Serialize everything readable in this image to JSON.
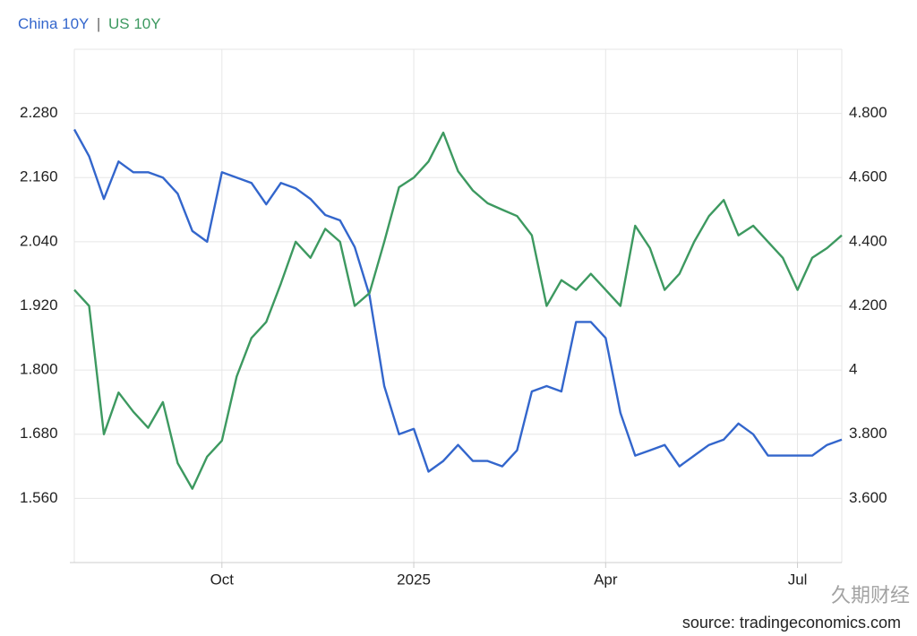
{
  "chart_data": {
    "type": "line",
    "legend_separator": "|",
    "source": "source: tradingeconomics.com",
    "watermark": "久期财经",
    "categories": [
      null,
      null,
      null,
      null,
      null,
      null,
      null,
      null,
      null,
      null,
      "Oct",
      null,
      null,
      null,
      null,
      null,
      null,
      null,
      null,
      null,
      null,
      null,
      null,
      "2025",
      null,
      null,
      null,
      null,
      null,
      null,
      null,
      null,
      null,
      null,
      null,
      null,
      "Apr",
      null,
      null,
      null,
      null,
      null,
      null,
      null,
      null,
      null,
      null,
      null,
      null,
      "Jul",
      null,
      null,
      null
    ],
    "series": [
      {
        "name": "China 10Y",
        "color": "#3366cc",
        "values": [
          2.25,
          2.2,
          2.12,
          2.19,
          2.17,
          2.17,
          2.16,
          2.13,
          2.06,
          2.04,
          2.17,
          2.16,
          2.15,
          2.11,
          2.15,
          2.14,
          2.12,
          2.09,
          2.08,
          2.03,
          1.94,
          1.77,
          1.68,
          1.69,
          1.61,
          1.63,
          1.66,
          1.63,
          1.63,
          1.62,
          1.65,
          1.76,
          1.77,
          1.76,
          1.89,
          1.89,
          1.86,
          1.72,
          1.64,
          1.65,
          1.66,
          1.62,
          1.64,
          1.66,
          1.67,
          1.7,
          1.68,
          1.64,
          1.64,
          1.64,
          1.64,
          1.66,
          1.67
        ]
      },
      {
        "name": "US 10Y",
        "color": "#3d9960",
        "axis": "y2",
        "values": [
          4.25,
          4.2,
          3.8,
          3.93,
          3.87,
          3.82,
          3.9,
          3.71,
          3.63,
          3.73,
          3.78,
          3.98,
          4.1,
          4.15,
          4.27,
          4.4,
          4.35,
          4.44,
          4.4,
          4.2,
          4.24,
          4.4,
          4.57,
          4.6,
          4.65,
          4.74,
          4.62,
          4.56,
          4.52,
          4.5,
          4.48,
          4.42,
          4.2,
          4.28,
          4.25,
          4.3,
          4.25,
          4.2,
          4.45,
          4.38,
          4.25,
          4.3,
          4.4,
          4.48,
          4.53,
          4.42,
          4.45,
          4.4,
          4.35,
          4.25,
          4.35,
          4.38,
          4.42
        ]
      }
    ],
    "ylim": [
      1.44,
      2.4
    ],
    "yticks": [
      {
        "value": 1.56,
        "label": "1.560"
      },
      {
        "value": 1.68,
        "label": "1.680"
      },
      {
        "value": 1.8,
        "label": "1.800"
      },
      {
        "value": 1.92,
        "label": "1.920"
      },
      {
        "value": 2.04,
        "label": "2.040"
      },
      {
        "value": 2.16,
        "label": "2.160"
      },
      {
        "value": 2.28,
        "label": "2.280"
      }
    ],
    "y2lim": [
      3.4,
      5.0
    ],
    "y2ticks": [
      {
        "value": 3.6,
        "label": "3.600"
      },
      {
        "value": 3.8,
        "label": "3.800"
      },
      4,
      {
        "value": 4.2,
        "label": "4.200"
      },
      {
        "value": 4.4,
        "label": "4.400"
      },
      {
        "value": 4.6,
        "label": "4.600"
      },
      {
        "value": 4.8,
        "label": "4.800"
      }
    ],
    "grid": true
  }
}
